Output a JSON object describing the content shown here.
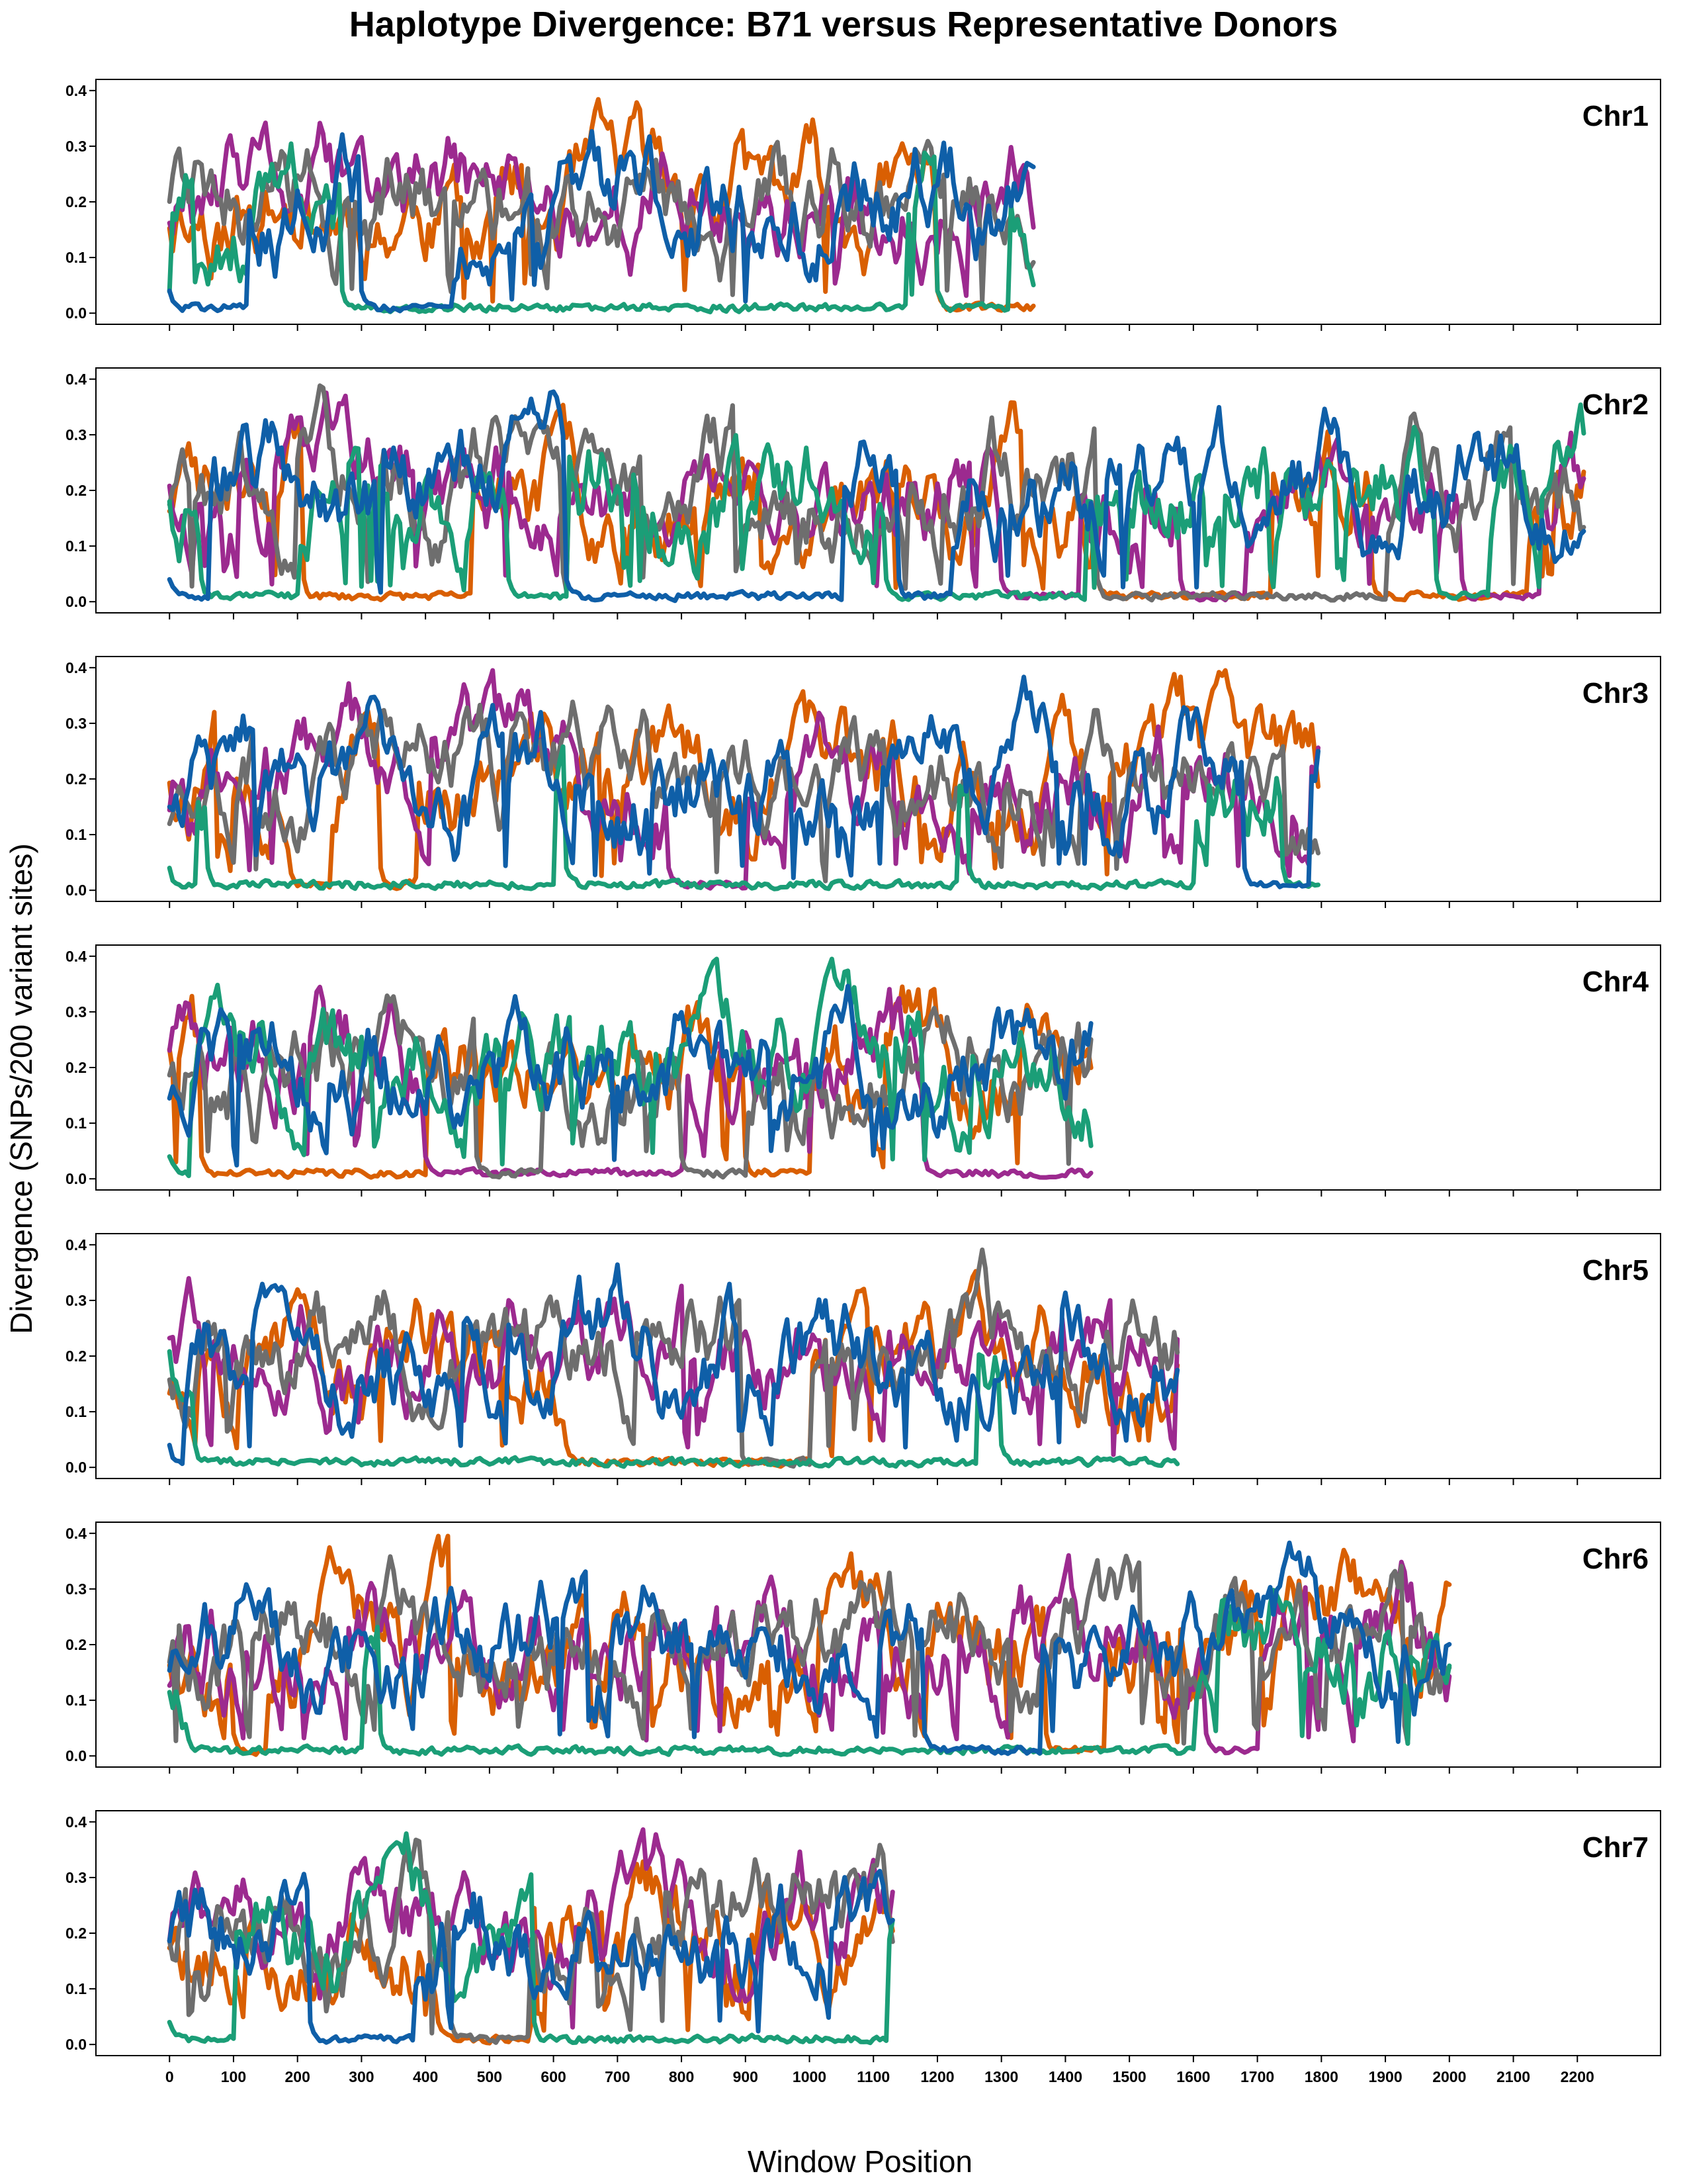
{
  "chart_data": {
    "type": "line",
    "title": "Haplotype Divergence: B71 versus Representative Donors",
    "xlabel": "Window Position",
    "ylabel": "Divergence (SNPs/200 variant sites)",
    "xlim": [
      -115,
      2330
    ],
    "ylim": [
      -0.02,
      0.42
    ],
    "x_ticks": [
      0,
      100,
      200,
      300,
      400,
      500,
      600,
      700,
      800,
      900,
      1000,
      1100,
      1200,
      1300,
      1400,
      1500,
      1600,
      1700,
      1800,
      1900,
      2000,
      2100,
      2200
    ],
    "y_ticks": [
      0.0,
      0.1,
      0.2,
      0.3,
      0.4
    ],
    "y_tick_labels": [
      "0.0",
      "0.1",
      "0.2",
      "0.3",
      "0.4"
    ],
    "series_colors": [
      "#d95f02",
      "#9c2a8f",
      "#6e6e6e",
      "#1b9e77",
      "#0f5fa8"
    ],
    "grid": false,
    "panels": [
      {
        "label": "Chr1",
        "max_window": 1350,
        "seed": 11,
        "series": [
          {
            "color": "#d95f02",
            "low_segments": [
              [
                1200,
                1350
              ]
            ]
          },
          {
            "color": "#9c2a8f",
            "low_segments": []
          },
          {
            "color": "#6e6e6e",
            "low_segments": []
          },
          {
            "color": "#1b9e77",
            "low_segments": [
              [
                270,
                1150
              ],
              [
                1200,
                1310
              ]
            ]
          },
          {
            "color": "#0f5fa8",
            "low_segments": [
              [
                0,
                120
              ],
              [
                300,
                440
              ]
            ]
          }
        ]
      },
      {
        "label": "Chr2",
        "max_window": 2210,
        "seed": 23,
        "series": [
          {
            "color": "#d95f02",
            "low_segments": [
              [
                210,
                470
              ],
              [
                1450,
                1720
              ],
              [
                1880,
                2120
              ]
            ]
          },
          {
            "color": "#9c2a8f",
            "low_segments": [
              [
                1300,
                1420
              ],
              [
                1580,
                1680
              ],
              [
                2020,
                2140
              ]
            ]
          },
          {
            "color": "#6e6e6e",
            "low_segments": [
              [
                1450,
                1900
              ]
            ]
          },
          {
            "color": "#1b9e77",
            "low_segments": [
              [
                50,
                200
              ],
              [
                530,
                620
              ],
              [
                1120,
                1430
              ],
              [
                1980,
                2060
              ]
            ]
          },
          {
            "color": "#0f5fa8",
            "low_segments": [
              [
                0,
                60
              ],
              [
                620,
                1050
              ],
              [
                1140,
                1220
              ]
            ]
          }
        ]
      },
      {
        "label": "Chr3",
        "max_window": 1795,
        "seed": 37,
        "series": [
          {
            "color": "#d95f02",
            "low_segments": [
              [
                190,
                250
              ],
              [
                330,
                380
              ]
            ]
          },
          {
            "color": "#9c2a8f",
            "low_segments": [
              [
                780,
                900
              ]
            ]
          },
          {
            "color": "#6e6e6e",
            "low_segments": []
          },
          {
            "color": "#1b9e77",
            "low_segments": [
              [
                0,
                40
              ],
              [
                60,
                600
              ],
              [
                620,
                1230
              ],
              [
                1250,
                1600
              ],
              [
                1740,
                1795
              ]
            ]
          },
          {
            "color": "#0f5fa8",
            "low_segments": [
              [
                1680,
                1780
              ]
            ]
          }
        ]
      },
      {
        "label": "Chr4",
        "max_window": 1440,
        "seed": 41,
        "series": [
          {
            "color": "#d95f02",
            "low_segments": [
              [
                50,
                400
              ],
              [
                900,
                1000
              ]
            ]
          },
          {
            "color": "#9c2a8f",
            "low_segments": [
              [
                400,
                800
              ],
              [
                1180,
                1440
              ]
            ]
          },
          {
            "color": "#6e6e6e",
            "low_segments": [
              [
                480,
                580
              ],
              [
                800,
                900
              ]
            ]
          },
          {
            "color": "#1b9e77",
            "low_segments": [
              [
                0,
                30
              ]
            ]
          },
          {
            "color": "#0f5fa8",
            "low_segments": []
          }
        ]
      },
      {
        "label": "Chr5",
        "max_window": 1575,
        "seed": 53,
        "series": [
          {
            "color": "#d95f02",
            "low_segments": [
              [
                620,
                1000
              ]
            ]
          },
          {
            "color": "#9c2a8f",
            "low_segments": []
          },
          {
            "color": "#6e6e6e",
            "low_segments": [
              [
                900,
                1000
              ]
            ]
          },
          {
            "color": "#1b9e77",
            "low_segments": [
              [
                40,
                1260
              ],
              [
                1300,
                1575
              ]
            ]
          },
          {
            "color": "#0f5fa8",
            "low_segments": [
              [
                0,
                20
              ]
            ]
          }
        ]
      },
      {
        "label": "Chr6",
        "max_window": 2000,
        "seed": 67,
        "series": [
          {
            "color": "#d95f02",
            "low_segments": [
              [
                100,
                150
              ],
              [
                1370,
                1460
              ]
            ]
          },
          {
            "color": "#9c2a8f",
            "low_segments": [
              [
                1620,
                1700
              ]
            ]
          },
          {
            "color": "#6e6e6e",
            "low_segments": []
          },
          {
            "color": "#1b9e77",
            "low_segments": [
              [
                30,
                300
              ],
              [
                330,
                1600
              ]
            ]
          },
          {
            "color": "#0f5fa8",
            "low_segments": [
              [
                1180,
                1360
              ]
            ]
          }
        ]
      },
      {
        "label": "Chr7",
        "max_window": 1130,
        "seed": 79,
        "series": [
          {
            "color": "#d95f02",
            "low_segments": [
              [
                420,
                560
              ]
            ]
          },
          {
            "color": "#9c2a8f",
            "low_segments": []
          },
          {
            "color": "#6e6e6e",
            "low_segments": [
              [
                440,
                560
              ]
            ]
          },
          {
            "color": "#1b9e77",
            "low_segments": [
              [
                0,
                100
              ],
              [
                570,
                1120
              ]
            ]
          },
          {
            "color": "#0f5fa8",
            "low_segments": [
              [
                220,
                380
              ]
            ]
          }
        ]
      }
    ]
  }
}
